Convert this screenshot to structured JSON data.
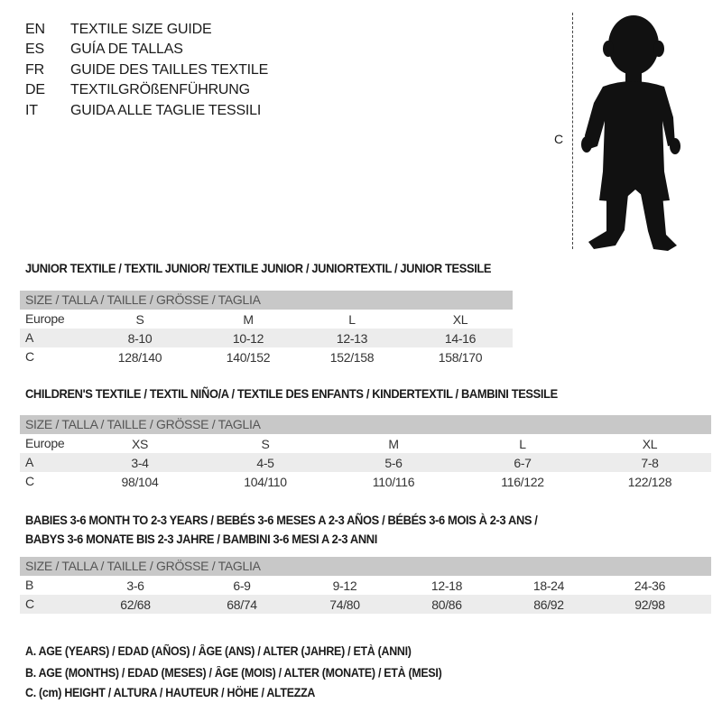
{
  "languages": [
    {
      "code": "EN",
      "title": "TEXTILE SIZE GUIDE"
    },
    {
      "code": "ES",
      "title": "GUÍA DE TALLAS"
    },
    {
      "code": "FR",
      "title": "GUIDE DES TAILLES TEXTILE"
    },
    {
      "code": "DE",
      "title": "TEXTILGRÖßENFÜHRUNG"
    },
    {
      "code": "IT",
      "title": "GUIDA ALLE TAGLIE TESSILI"
    }
  ],
  "figure": {
    "measure_label": "C"
  },
  "size_header": "SIZE / TALLA / TAILLE / GRÖSSE / TAGLIA",
  "junior": {
    "heading": "JUNIOR TEXTILE / TEXTIL JUNIOR/ TEXTILE JUNIOR / JUNIORTEXTIL / JUNIOR TESSILE",
    "rows": [
      {
        "label": "Europe",
        "values": [
          "S",
          "M",
          "L",
          "XL"
        ]
      },
      {
        "label": "A",
        "values": [
          "8-10",
          "10-12",
          "12-13",
          "14-16"
        ]
      },
      {
        "label": "C",
        "values": [
          "128/140",
          "140/152",
          "152/158",
          "158/170"
        ]
      }
    ]
  },
  "children": {
    "heading": "CHILDREN'S TEXTILE / TEXTIL NIÑO/A / TEXTILE DES ENFANTS / KINDERTEXTIL / BAMBINI TESSILE",
    "rows": [
      {
        "label": "Europe",
        "values": [
          "XS",
          "S",
          "M",
          "L",
          "XL"
        ]
      },
      {
        "label": "A",
        "values": [
          "3-4",
          "4-5",
          "5-6",
          "6-7",
          "7-8"
        ]
      },
      {
        "label": "C",
        "values": [
          "98/104",
          "104/110",
          "110/116",
          "116/122",
          "122/128"
        ]
      }
    ]
  },
  "babies": {
    "heading_line1": "BABIES 3-6 MONTH TO 2-3 YEARS / BEBÉS 3-6 MESES A 2-3 AÑOS / BÉBÉS 3-6 MOIS À 2-3 ANS /",
    "heading_line2": "BABYS 3-6 MONATE BIS 2-3 JAHRE / BAMBINI 3-6 MESI A 2-3 ANNI",
    "rows": [
      {
        "label": "B",
        "values": [
          "3-6",
          "6-9",
          "9-12",
          "12-18",
          "18-24",
          "24-36"
        ]
      },
      {
        "label": "C",
        "values": [
          "62/68",
          "68/74",
          "74/80",
          "80/86",
          "86/92",
          "92/98"
        ]
      }
    ]
  },
  "legend": [
    "A. AGE (YEARS) / EDAD (AÑOS) / ÂGE (ANS) / ALTER (JAHRE) / ETÀ (ANNI)",
    "B. AGE (MONTHS) / EDAD (MESES) / ÂGE (MOIS) / ALTER (MONATE) / ETÀ (MESI)",
    "C. (cm) HEIGHT / ALTURA / HAUTEUR / HÖHE / ALTEZZA"
  ]
}
